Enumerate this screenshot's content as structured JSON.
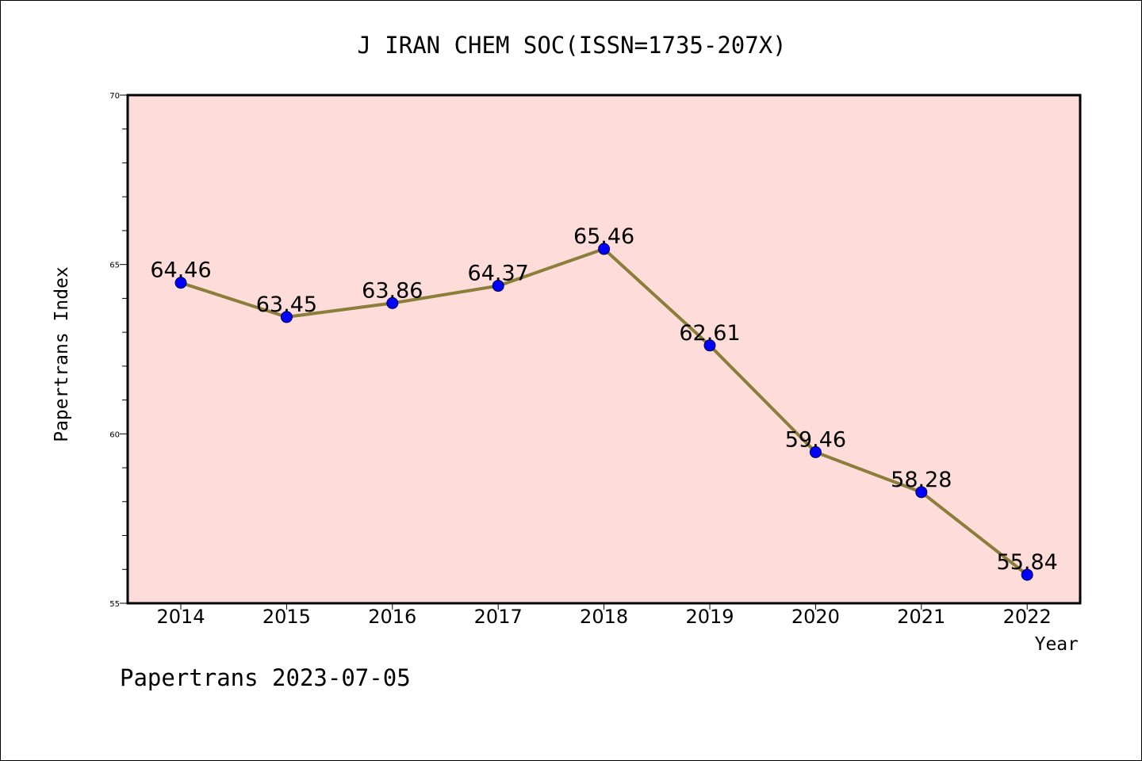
{
  "chart_data": {
    "type": "line",
    "title": "J IRAN CHEM SOC(ISSN=1735-207X)",
    "xlabel": "Year",
    "ylabel": "Papertrans Index",
    "footer": "Papertrans 2023-07-05",
    "categories": [
      "2014",
      "2015",
      "2016",
      "2017",
      "2018",
      "2019",
      "2020",
      "2021",
      "2022"
    ],
    "series": [
      {
        "values": [
          64.46,
          63.45,
          63.86,
          64.37,
          65.46,
          62.61,
          59.46,
          58.28,
          55.84
        ],
        "labels": [
          "64.46",
          "63.45",
          "63.86",
          "64.37",
          "65.46",
          "62.61",
          "59.46",
          "58.28",
          "55.84"
        ]
      }
    ],
    "ylim": [
      55,
      70
    ],
    "yticks": [
      55,
      60,
      65,
      70
    ],
    "yticklabels": [
      "55",
      "60",
      "65",
      "70"
    ],
    "grid": false,
    "legend": "none",
    "colors": {
      "plot_background": "#FDDCDA",
      "line": "#8B7D3A",
      "marker": "#0000FF",
      "axis": "#000000",
      "text": "#000000"
    }
  }
}
